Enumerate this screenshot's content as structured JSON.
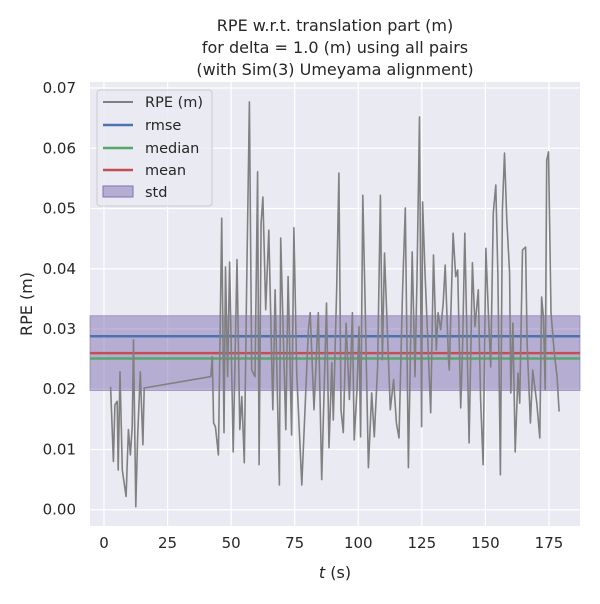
{
  "chart_data": {
    "type": "line",
    "title": [
      "RPE w.r.t. translation part (m)",
      "for delta = 1.0 (m) using all pairs",
      "(with Sim(3) Umeyama alignment)"
    ],
    "xlabel_symbol": "t",
    "xlabel_unit": "(s)",
    "ylabel": "RPE (m)",
    "xlim": [
      -5.5,
      187.2
    ],
    "ylim": [
      -0.0027,
      0.071
    ],
    "xticks": [
      0,
      25,
      50,
      75,
      100,
      125,
      150,
      175
    ],
    "xtick_labels": [
      "0",
      "25",
      "50",
      "75",
      "100",
      "125",
      "150",
      "175"
    ],
    "yticks": [
      0.0,
      0.01,
      0.02,
      0.03,
      0.04,
      0.05,
      0.06,
      0.07
    ],
    "ytick_labels": [
      "0.00",
      "0.01",
      "0.02",
      "0.03",
      "0.04",
      "0.05",
      "0.06",
      "0.07"
    ],
    "grid": true,
    "legend_placement": "top-left",
    "legend": [
      "RPE (m)",
      "rmse",
      "median",
      "mean",
      "std"
    ],
    "colors": {
      "series": "#808080",
      "rmse": "#4c72b0",
      "median": "#55a868",
      "mean": "#c44e52",
      "std": "#8172b2",
      "background": "#eaeaf2",
      "grid": "#ffffff"
    },
    "stats": {
      "rmse": 0.0288,
      "median": 0.0251,
      "mean": 0.026,
      "std": 0.0062
    },
    "series": [
      {
        "name": "RPE (m)",
        "x": [
          2.6,
          3.7,
          4.3,
          5.2,
          5.6,
          6.3,
          7.2,
          8.7,
          9.6,
          10.4,
          11.1,
          11.6,
          12.5,
          13.2,
          14.3,
          15.3,
          15.8,
          42.0,
          42.6,
          43.1,
          43.8,
          45.0,
          46.3,
          47.2,
          47.8,
          48.6,
          49.4,
          50.8,
          52.3,
          53.4,
          54.2,
          55.2,
          56.1,
          57.2,
          58.1,
          59.4,
          60.4,
          61.0,
          61.8,
          62.5,
          63.6,
          64.8,
          66.4,
          67.3,
          69.0,
          69.5,
          71.5,
          72.4,
          73.8,
          74.7,
          75.8,
          77.8,
          80.4,
          81.1,
          82.6,
          84.3,
          85.6,
          87.5,
          88.5,
          89.6,
          90.2,
          91.5,
          92.4,
          93.2,
          94.1,
          95.2,
          96.5,
          97.7,
          98.4,
          99.5,
          100.3,
          100.9,
          101.8,
          102.9,
          104.0,
          105.3,
          106.3,
          107.6,
          108.7,
          109.5,
          110.3,
          111.6,
          112.6,
          113.9,
          115.0,
          116.0,
          117.4,
          118.5,
          119.7,
          121.2,
          122.3,
          123.1,
          124.1,
          124.9,
          125.3,
          126.2,
          127.5,
          128.5,
          129.6,
          130.7,
          131.4,
          132.4,
          133.4,
          134.2,
          135.5,
          135.8,
          137.3,
          138.3,
          139.1,
          140.3,
          141.0,
          141.9,
          143.6,
          144.9,
          145.9,
          147.2,
          148.1,
          149.1,
          150.2,
          151.2,
          152.1,
          153.1,
          154.1,
          154.9,
          155.9,
          156.7,
          157.5,
          158.4,
          159.5,
          160.0,
          160.8,
          161.7,
          162.8,
          163.5,
          164.6,
          165.8,
          166.4,
          167.7,
          168.6,
          170.2,
          171.4,
          172.1,
          172.8,
          173.5,
          174.1,
          174.8,
          175.8,
          177.1,
          178.2,
          179.0
        ],
        "y": [
          0.0204,
          0.008,
          0.0174,
          0.018,
          0.0066,
          0.0229,
          0.0066,
          0.0022,
          0.0133,
          0.0091,
          0.0138,
          0.0282,
          0.0005,
          0.0119,
          0.0229,
          0.0108,
          0.0202,
          0.0221,
          0.0254,
          0.0144,
          0.0138,
          0.0091,
          0.0484,
          0.0128,
          0.0403,
          0.0221,
          0.0411,
          0.0096,
          0.0415,
          0.0133,
          0.0188,
          0.0078,
          0.0365,
          0.0677,
          0.0232,
          0.0221,
          0.0561,
          0.0075,
          0.0476,
          0.0519,
          0.0332,
          0.0464,
          0.0166,
          0.0365,
          0.0041,
          0.0451,
          0.0133,
          0.0387,
          0.0124,
          0.0468,
          0.0227,
          0.0041,
          0.0299,
          0.0327,
          0.0166,
          0.0327,
          0.005,
          0.0343,
          0.0103,
          0.0244,
          0.0149,
          0.0368,
          0.0559,
          0.0166,
          0.0128,
          0.031,
          0.0183,
          0.0327,
          0.0116,
          0.0199,
          0.0304,
          0.0121,
          0.0522,
          0.0304,
          0.007,
          0.0194,
          0.0121,
          0.0237,
          0.0522,
          0.0249,
          0.0426,
          0.0277,
          0.0166,
          0.0216,
          0.0144,
          0.0119,
          0.036,
          0.0501,
          0.007,
          0.0428,
          0.0221,
          0.0385,
          0.0652,
          0.0138,
          0.0511,
          0.0398,
          0.0265,
          0.0161,
          0.0423,
          0.0265,
          0.0327,
          0.0299,
          0.0343,
          0.0406,
          0.0249,
          0.0232,
          0.0459,
          0.0387,
          0.0398,
          0.0169,
          0.0265,
          0.0459,
          0.0111,
          0.041,
          0.0304,
          0.0365,
          0.0183,
          0.0075,
          0.0434,
          0.032,
          0.0237,
          0.0493,
          0.0539,
          0.0387,
          0.0058,
          0.0498,
          0.0592,
          0.0481,
          0.0393,
          0.0194,
          0.031,
          0.0096,
          0.0227,
          0.0177,
          0.0431,
          0.0436,
          0.0277,
          0.0144,
          0.0232,
          0.0177,
          0.0119,
          0.0353,
          0.032,
          0.0199,
          0.058,
          0.0594,
          0.0327,
          0.026,
          0.0221,
          0.0163
        ]
      }
    ]
  }
}
